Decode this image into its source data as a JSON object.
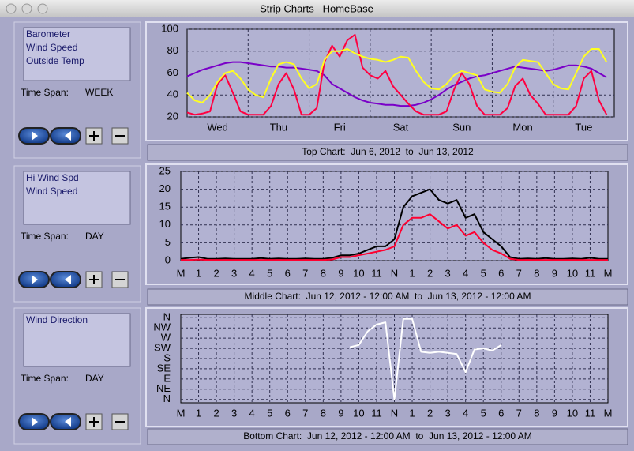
{
  "window": {
    "title": "Strip Charts   HomeBase"
  },
  "panels": [
    {
      "time_span_label": "Time Span:",
      "time_span": "WEEK"
    },
    {
      "time_span_label": "Time Span:",
      "time_span": "DAY"
    },
    {
      "time_span_label": "Time Span:",
      "time_span": "DAY"
    }
  ],
  "chart_data": [
    {
      "type": "line",
      "caption": "Top Chart:  Jun 6, 2012  to  Jun 13, 2012",
      "categories": [
        null,
        null,
        null,
        null,
        "Wed",
        null,
        null,
        null,
        null,
        null,
        null,
        null,
        "Thu",
        null,
        null,
        null,
        null,
        null,
        null,
        null,
        "Fri",
        null,
        null,
        null,
        null,
        null,
        null,
        null,
        "Sat",
        null,
        null,
        null,
        null,
        null,
        null,
        null,
        "Sun",
        null,
        null,
        null,
        null,
        null,
        null,
        null,
        "Mon",
        null,
        null,
        null,
        null,
        null,
        null,
        null,
        "Tue",
        null,
        null,
        null
      ],
      "ylim": [
        20,
        100
      ],
      "yticks": [
        20,
        40,
        60,
        80,
        100
      ],
      "grid": true,
      "series": [
        {
          "name": "Barometer",
          "color": "#7a00c8",
          "values": [
            57,
            60,
            63,
            65,
            67,
            69,
            70,
            70,
            69,
            68,
            67,
            66,
            66,
            65,
            65,
            64,
            63,
            62,
            58,
            50,
            46,
            42,
            38,
            35,
            33,
            32,
            31,
            31,
            30,
            30,
            31,
            33,
            36,
            40,
            45,
            49,
            52,
            55,
            57,
            58,
            60,
            62,
            64,
            66,
            65,
            64,
            63,
            62,
            63,
            65,
            67,
            67,
            66,
            64,
            60,
            56
          ]
        },
        {
          "name": "Wind Speed",
          "color": "#ff0040",
          "values": [
            24,
            22,
            23,
            25,
            50,
            58,
            42,
            25,
            22,
            22,
            22,
            30,
            50,
            60,
            45,
            22,
            22,
            28,
            70,
            85,
            75,
            90,
            95,
            65,
            58,
            55,
            62,
            48,
            40,
            32,
            25,
            22,
            22,
            22,
            25,
            45,
            60,
            50,
            30,
            22,
            22,
            22,
            28,
            48,
            55,
            40,
            32,
            22,
            22,
            22,
            22,
            30,
            55,
            62,
            35,
            22
          ]
        },
        {
          "name": "Outside Temp",
          "color": "#ffff20",
          "values": [
            42,
            35,
            33,
            40,
            52,
            60,
            62,
            55,
            45,
            40,
            38,
            55,
            68,
            70,
            68,
            55,
            46,
            50,
            72,
            80,
            80,
            82,
            78,
            75,
            73,
            72,
            70,
            72,
            75,
            74,
            62,
            52,
            46,
            45,
            50,
            58,
            62,
            60,
            58,
            45,
            43,
            42,
            50,
            65,
            72,
            71,
            70,
            60,
            50,
            46,
            45,
            60,
            75,
            82,
            82,
            70
          ]
        }
      ]
    },
    {
      "type": "line",
      "caption": "Middle Chart:  Jun 12, 2012 - 12:00 AM  to  Jun 13, 2012 - 12:00 AM",
      "categories": [
        "M",
        null,
        "1",
        null,
        "2",
        null,
        "3",
        null,
        "4",
        null,
        "5",
        null,
        "6",
        null,
        "7",
        null,
        "8",
        null,
        "9",
        null,
        "10",
        null,
        "11",
        null,
        "N",
        null,
        "1",
        null,
        "2",
        null,
        "3",
        null,
        "4",
        null,
        "5",
        null,
        "6",
        null,
        "7",
        null,
        "8",
        null,
        "9",
        null,
        "10",
        null,
        "11",
        null,
        "M"
      ],
      "ylim": [
        0,
        25
      ],
      "yticks": [
        0,
        5,
        10,
        15,
        20,
        25
      ],
      "grid": true,
      "series": [
        {
          "name": "Hi Wind Spd",
          "color": "#000000",
          "values": [
            0.5,
            0.8,
            1,
            0.5,
            0.5,
            0.6,
            0.5,
            0.5,
            0.5,
            0.7,
            0.5,
            0.6,
            0.5,
            0.5,
            0.6,
            0.5,
            0.5,
            0.8,
            1.5,
            1.5,
            2,
            3,
            4,
            4,
            6,
            15,
            18,
            19,
            20,
            17,
            16,
            17,
            12,
            13,
            8,
            6,
            4,
            1,
            0.5,
            0.6,
            0.5,
            0.7,
            0.5,
            0.5,
            0.6,
            0.5,
            0.8,
            0.5,
            0.5
          ]
        },
        {
          "name": "Wind Speed",
          "color": "#ff0030",
          "values": [
            0.2,
            0.2,
            0.3,
            0.2,
            0.2,
            0.2,
            0.2,
            0.2,
            0.2,
            0.2,
            0.2,
            0.2,
            0.2,
            0.2,
            0.2,
            0.2,
            0.2,
            0.3,
            1,
            1,
            1.5,
            2,
            2.5,
            3,
            4,
            10,
            12,
            12,
            13,
            11,
            9,
            10,
            7,
            8,
            5,
            3,
            2,
            0.5,
            0.2,
            0.2,
            0.2,
            0.2,
            0.2,
            0.2,
            0.2,
            0.2,
            0.2,
            0.2,
            0.2
          ]
        }
      ]
    },
    {
      "type": "line",
      "caption": "Bottom Chart:  Jun 12, 2012 - 12:00 AM  to  Jun 13, 2012 - 12:00 AM",
      "categories": [
        "M",
        null,
        "1",
        null,
        "2",
        null,
        "3",
        null,
        "4",
        null,
        "5",
        null,
        "6",
        null,
        "7",
        null,
        "8",
        null,
        "9",
        null,
        "10",
        null,
        "11",
        null,
        "N",
        null,
        "1",
        null,
        "2",
        null,
        "3",
        null,
        "4",
        null,
        "5",
        null,
        "6",
        null,
        "7",
        null,
        "8",
        null,
        "9",
        null,
        "10",
        null,
        "11",
        null,
        "M"
      ],
      "ylim": [
        -15,
        375
      ],
      "yticks": [
        {
          "value": 0,
          "label": "N"
        },
        {
          "value": 45,
          "label": "NE"
        },
        {
          "value": 90,
          "label": "E"
        },
        {
          "value": 135,
          "label": "SE"
        },
        {
          "value": 180,
          "label": "S"
        },
        {
          "value": 225,
          "label": "SW"
        },
        {
          "value": 270,
          "label": "W"
        },
        {
          "value": 315,
          "label": "NW"
        },
        {
          "value": 360,
          "label": "N"
        }
      ],
      "grid": true,
      "series": [
        {
          "name": "Wind Direction",
          "color": "#ffffff",
          "values": [
            null,
            null,
            null,
            null,
            null,
            null,
            null,
            null,
            null,
            null,
            null,
            null,
            null,
            null,
            null,
            null,
            null,
            null,
            null,
            230,
            240,
            300,
            330,
            340,
            0,
            355,
            355,
            210,
            205,
            210,
            205,
            200,
            120,
            220,
            225,
            215,
            240,
            null,
            null,
            null,
            null,
            null,
            null,
            null,
            null,
            null,
            null,
            null,
            null
          ]
        }
      ]
    }
  ]
}
